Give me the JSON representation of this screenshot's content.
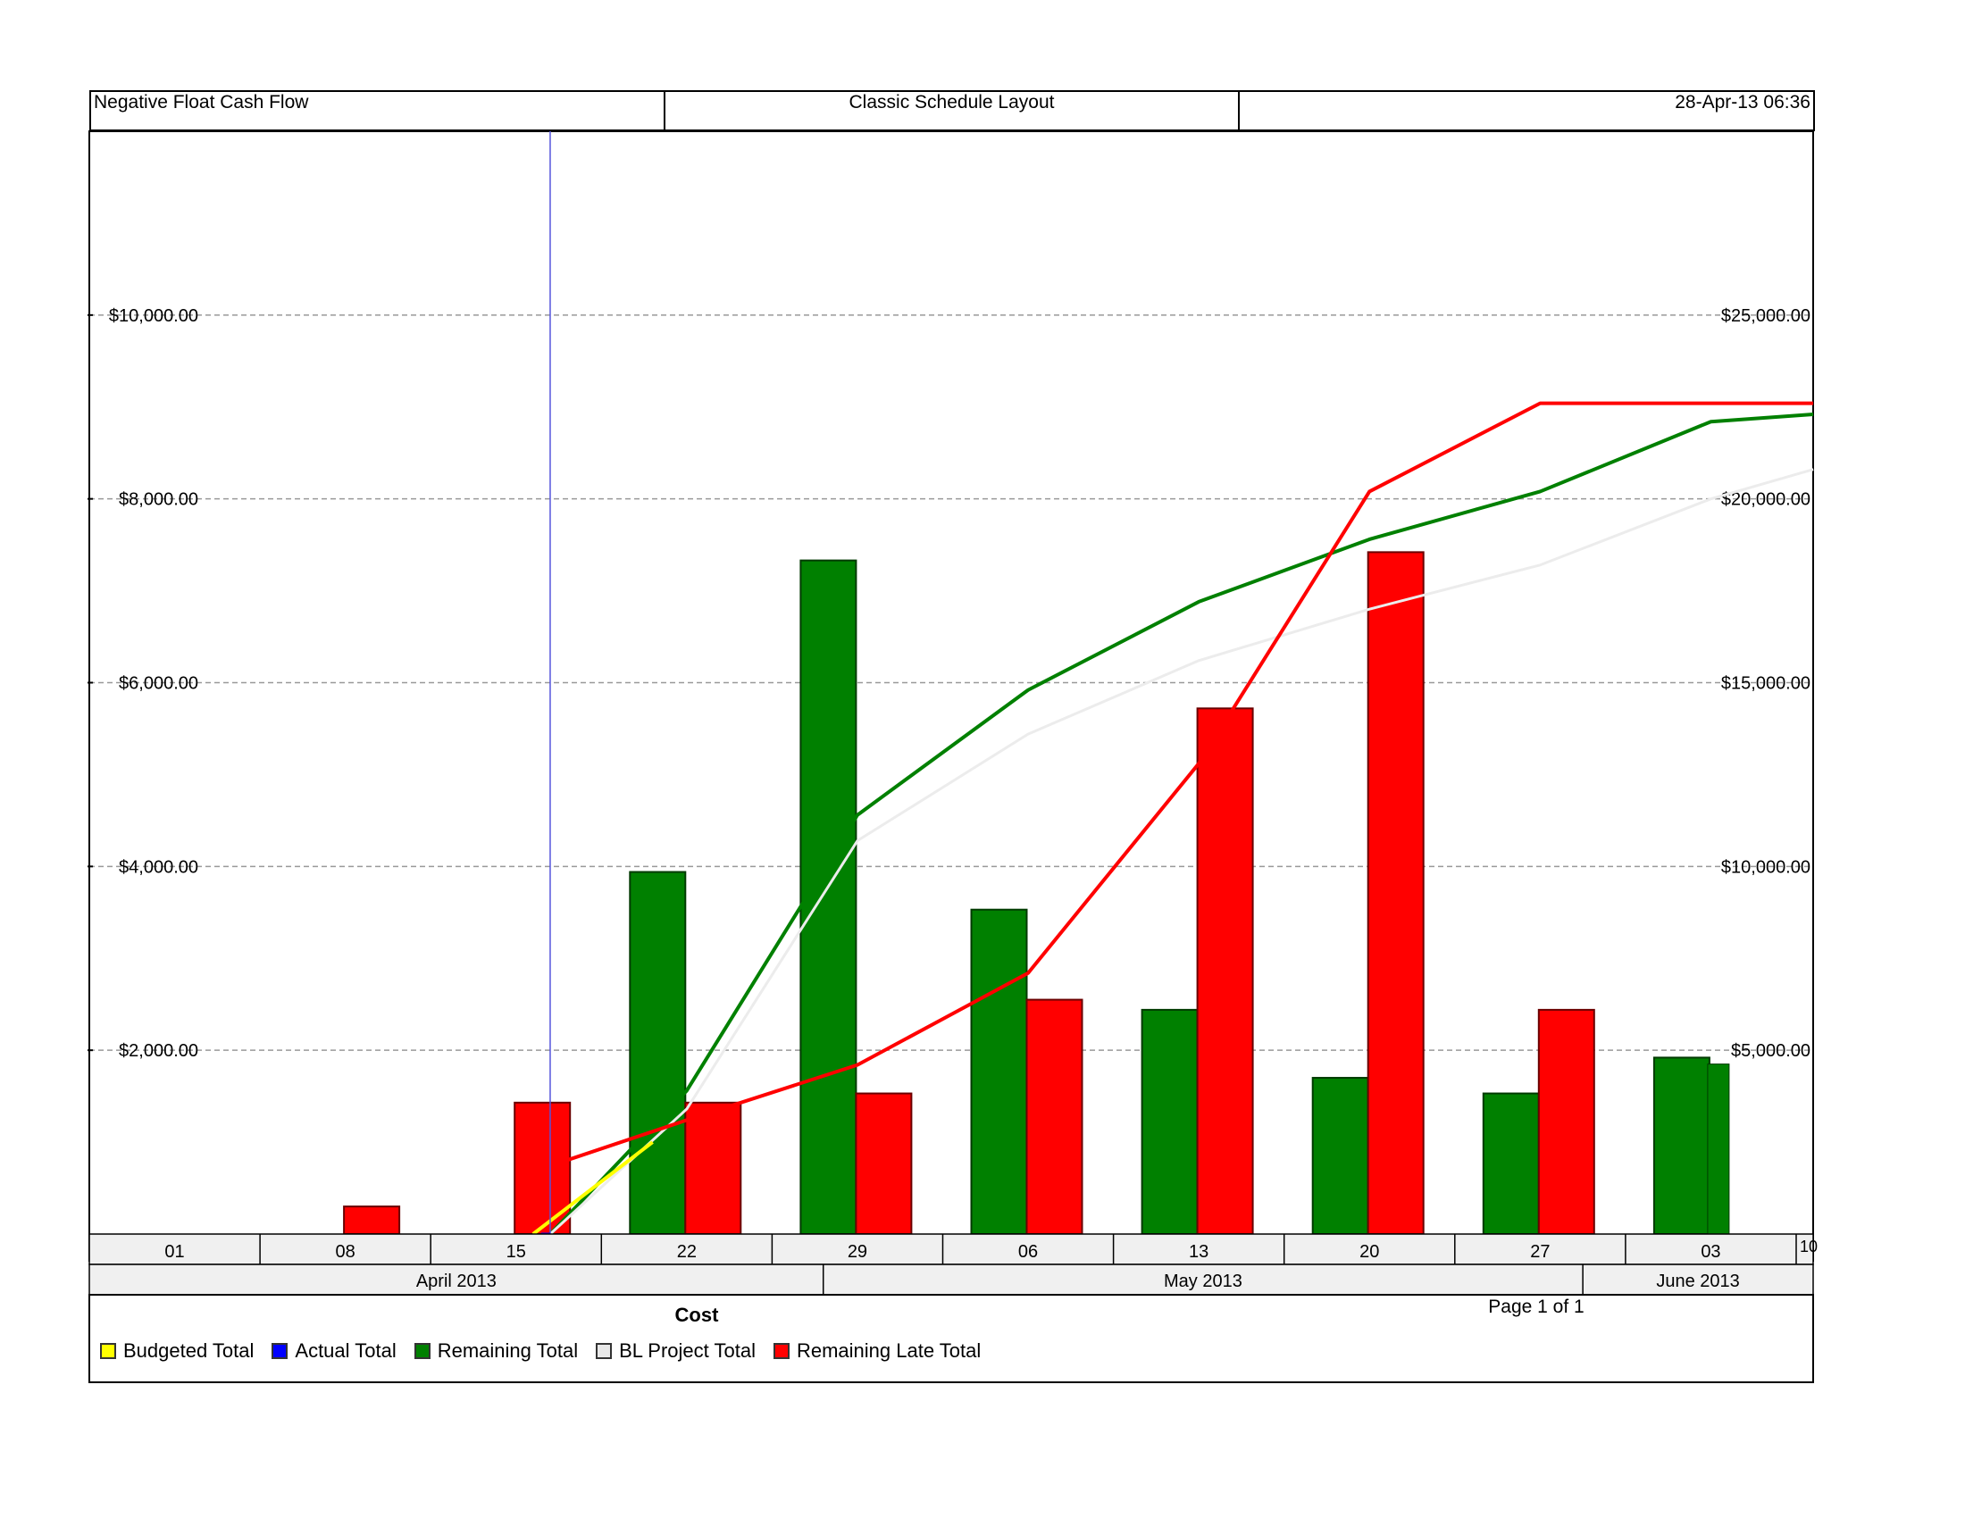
{
  "header": {
    "left": "Negative Float Cash Flow",
    "center": "Classic Schedule Layout",
    "right": "28-Apr-13 06:36"
  },
  "footer": {
    "legend_title": "Cost",
    "page_label": "Page 1 of 1"
  },
  "legend": [
    {
      "label": "Budgeted Total",
      "color": "#ffff00"
    },
    {
      "label": "Actual Total",
      "color": "#0000ff"
    },
    {
      "label": "Remaining Total",
      "color": "#008000"
    },
    {
      "label": "BL Project Total",
      "color": "#e8e8e8"
    },
    {
      "label": "Remaining Late Total",
      "color": "#ff0000"
    }
  ],
  "chart_data": {
    "type": "bar",
    "title": "",
    "grid": true,
    "categories": [
      "01",
      "08",
      "15",
      "22",
      "29",
      "06",
      "13",
      "20",
      "27",
      "03",
      "10"
    ],
    "months": [
      {
        "label": "April 2013",
        "start_week": 0,
        "weeks": 4.3
      },
      {
        "label": "May 2013",
        "start_week": 4.3,
        "weeks": 4.45
      },
      {
        "label": "June 2013",
        "start_week": 8.75,
        "weeks": 1.4
      }
    ],
    "data_date_week": 2.7,
    "y_left": {
      "min": 0,
      "max": 12000,
      "ticks": [
        2000,
        4000,
        6000,
        8000,
        10000
      ],
      "tick_labels": [
        "$2,000.00",
        "$4,000.00",
        "$6,000.00",
        "$8,000.00",
        "$10,000.00"
      ]
    },
    "y_right": {
      "min": 0,
      "max": 30000,
      "ticks": [
        5000,
        10000,
        15000,
        20000,
        25000
      ],
      "tick_labels": [
        "$5,000.00",
        "$10,000.00",
        "$15,000.00",
        "$20,000.00",
        "$25,000.00"
      ]
    },
    "bar_series": [
      {
        "name": "Remaining Total",
        "color": "#008000",
        "values": [
          0,
          0,
          0,
          3940,
          7330,
          3530,
          2440,
          1700,
          1530,
          1920
        ]
      },
      {
        "name": "Remaining Late Total",
        "color": "#ff0000",
        "values": [
          0,
          300,
          1430,
          1430,
          1530,
          2550,
          5720,
          7420,
          2440,
          0
        ]
      }
    ],
    "bar_extra_note_week9": 1850,
    "line_series": [
      {
        "name": "Remaining Total",
        "color": "#008000",
        "axis": "right",
        "points": [
          [
            2.7,
            0
          ],
          [
            3.5,
            3900
          ],
          [
            4.5,
            11400
          ],
          [
            5.5,
            14800
          ],
          [
            6.5,
            17200
          ],
          [
            7.5,
            18900
          ],
          [
            8.5,
            20200
          ],
          [
            9.5,
            22100
          ],
          [
            10.1,
            22300
          ]
        ]
      },
      {
        "name": "BL Project Total",
        "color": "#ececec",
        "axis": "right",
        "points": [
          [
            2.7,
            0
          ],
          [
            3.5,
            3400
          ],
          [
            4.5,
            10700
          ],
          [
            5.5,
            13600
          ],
          [
            6.5,
            15600
          ],
          [
            7.5,
            17000
          ],
          [
            8.5,
            18200
          ],
          [
            9.5,
            20000
          ],
          [
            10.1,
            20800
          ]
        ]
      },
      {
        "name": "Remaining Late Total",
        "color": "#ff0000",
        "axis": "right",
        "points": [
          [
            2.6,
            1700
          ],
          [
            3.5,
            3100
          ],
          [
            4.5,
            4600
          ],
          [
            5.5,
            7100
          ],
          [
            6.5,
            12800
          ],
          [
            7.5,
            20200
          ],
          [
            8.5,
            22600
          ],
          [
            9.5,
            22600
          ],
          [
            10.1,
            22600
          ]
        ]
      },
      {
        "name": "Budgeted Total",
        "color": "#ffff00",
        "axis": "right",
        "points": [
          [
            2.6,
            0
          ],
          [
            3.3,
            2500
          ]
        ]
      }
    ]
  }
}
